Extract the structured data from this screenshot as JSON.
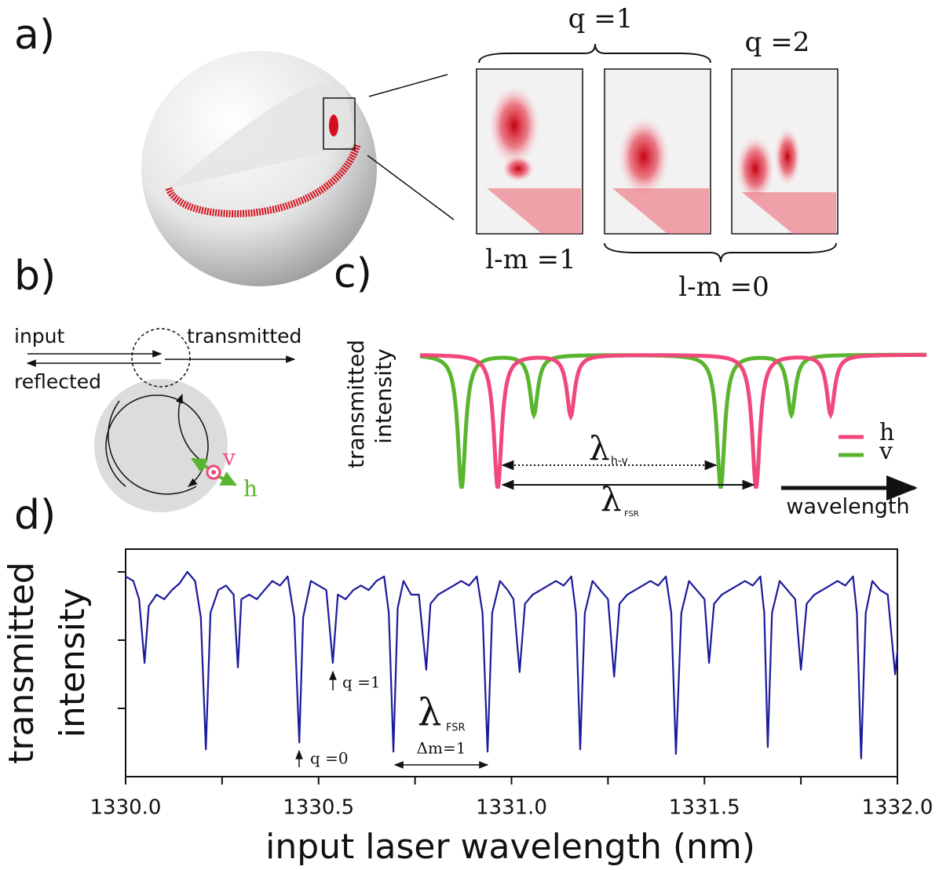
{
  "panels": {
    "a": {
      "label": "a)",
      "q1": "q =1",
      "q2": "q =2",
      "lm1": "l-m =1",
      "lm0": "l-m =0"
    },
    "b": {
      "label": "b)",
      "input": "input",
      "transmitted": "transmitted",
      "reflected": "reflected",
      "v": "v",
      "h": "h"
    },
    "c": {
      "label": "c)",
      "ylabel": [
        "transmitted",
        "intensity"
      ],
      "lambda": "λ",
      "hv": "h-v",
      "fsr": "FSR",
      "legend_h": "h",
      "legend_v": "v",
      "xlabel": "wavelength"
    },
    "d": {
      "label": "d)"
    }
  },
  "chart_data": {
    "type": "line",
    "xlabel": "input laser wavelength (nm)",
    "ylabel": [
      "transmitted",
      "intensity"
    ],
    "color": "#1a1a9c",
    "xlim": [
      1330.0,
      1332.0
    ],
    "ylim": [
      0,
      1
    ],
    "xticks": [
      {
        "value": 1330.0,
        "label": "1330.0"
      },
      {
        "value": 1330.5,
        "label": "1330.5"
      },
      {
        "value": 1331.0,
        "label": "1331.0"
      },
      {
        "value": 1331.5,
        "label": "1331.5"
      },
      {
        "value": 1332.0,
        "label": "1332.0"
      }
    ],
    "xminorticks": [
      1330.25,
      1330.75,
      1331.25,
      1331.75
    ],
    "yticks": [
      0.3,
      0.6,
      0.9
    ],
    "annotations": {
      "q1": "q =1",
      "q0": "q =0",
      "lambda": "λ",
      "fsr": "FSR",
      "dm": "Δm=1"
    },
    "x": [
      1330.0,
      1330.02,
      1330.035,
      1330.049,
      1330.06,
      1330.08,
      1330.1,
      1330.12,
      1330.14,
      1330.16,
      1330.18,
      1330.195,
      1330.208,
      1330.22,
      1330.24,
      1330.26,
      1330.28,
      1330.291,
      1330.3,
      1330.32,
      1330.34,
      1330.36,
      1330.38,
      1330.4,
      1330.42,
      1330.437,
      1330.45,
      1330.46,
      1330.48,
      1330.5,
      1330.52,
      1330.537,
      1330.55,
      1330.57,
      1330.59,
      1330.61,
      1330.63,
      1330.65,
      1330.67,
      1330.682,
      1330.694,
      1330.705,
      1330.72,
      1330.74,
      1330.76,
      1330.779,
      1330.79,
      1330.81,
      1330.83,
      1330.85,
      1330.87,
      1330.89,
      1330.91,
      1330.925,
      1330.938,
      1330.95,
      1330.97,
      1330.99,
      1331.005,
      1331.021,
      1331.035,
      1331.055,
      1331.075,
      1331.095,
      1331.115,
      1331.135,
      1331.155,
      1331.167,
      1331.178,
      1331.19,
      1331.21,
      1331.23,
      1331.25,
      1331.266,
      1331.28,
      1331.3,
      1331.32,
      1331.34,
      1331.36,
      1331.38,
      1331.4,
      1331.414,
      1331.426,
      1331.44,
      1331.46,
      1331.48,
      1331.5,
      1331.512,
      1331.525,
      1331.545,
      1331.565,
      1331.585,
      1331.605,
      1331.625,
      1331.645,
      1331.655,
      1331.664,
      1331.675,
      1331.695,
      1331.715,
      1331.735,
      1331.75,
      1331.765,
      1331.785,
      1331.805,
      1331.825,
      1331.845,
      1331.865,
      1331.885,
      1331.895,
      1331.906,
      1331.918,
      1331.935,
      1331.955,
      1331.975,
      1331.994,
      1332.0
    ],
    "values": [
      0.88,
      0.86,
      0.78,
      0.5,
      0.75,
      0.8,
      0.78,
      0.82,
      0.85,
      0.9,
      0.86,
      0.7,
      0.12,
      0.72,
      0.82,
      0.84,
      0.8,
      0.48,
      0.78,
      0.8,
      0.78,
      0.82,
      0.86,
      0.84,
      0.88,
      0.7,
      0.15,
      0.7,
      0.86,
      0.84,
      0.82,
      0.5,
      0.8,
      0.78,
      0.82,
      0.84,
      0.82,
      0.86,
      0.88,
      0.72,
      0.11,
      0.74,
      0.86,
      0.8,
      0.8,
      0.47,
      0.76,
      0.8,
      0.82,
      0.84,
      0.86,
      0.84,
      0.88,
      0.72,
      0.11,
      0.72,
      0.86,
      0.82,
      0.78,
      0.46,
      0.76,
      0.8,
      0.82,
      0.84,
      0.86,
      0.84,
      0.88,
      0.72,
      0.12,
      0.72,
      0.86,
      0.82,
      0.78,
      0.44,
      0.76,
      0.8,
      0.82,
      0.84,
      0.86,
      0.84,
      0.88,
      0.72,
      0.1,
      0.72,
      0.86,
      0.82,
      0.78,
      0.5,
      0.76,
      0.8,
      0.82,
      0.84,
      0.86,
      0.84,
      0.88,
      0.72,
      0.13,
      0.72,
      0.86,
      0.82,
      0.78,
      0.47,
      0.76,
      0.8,
      0.82,
      0.84,
      0.86,
      0.84,
      0.88,
      0.72,
      0.08,
      0.72,
      0.86,
      0.82,
      0.8,
      0.45,
      0.55
    ]
  }
}
